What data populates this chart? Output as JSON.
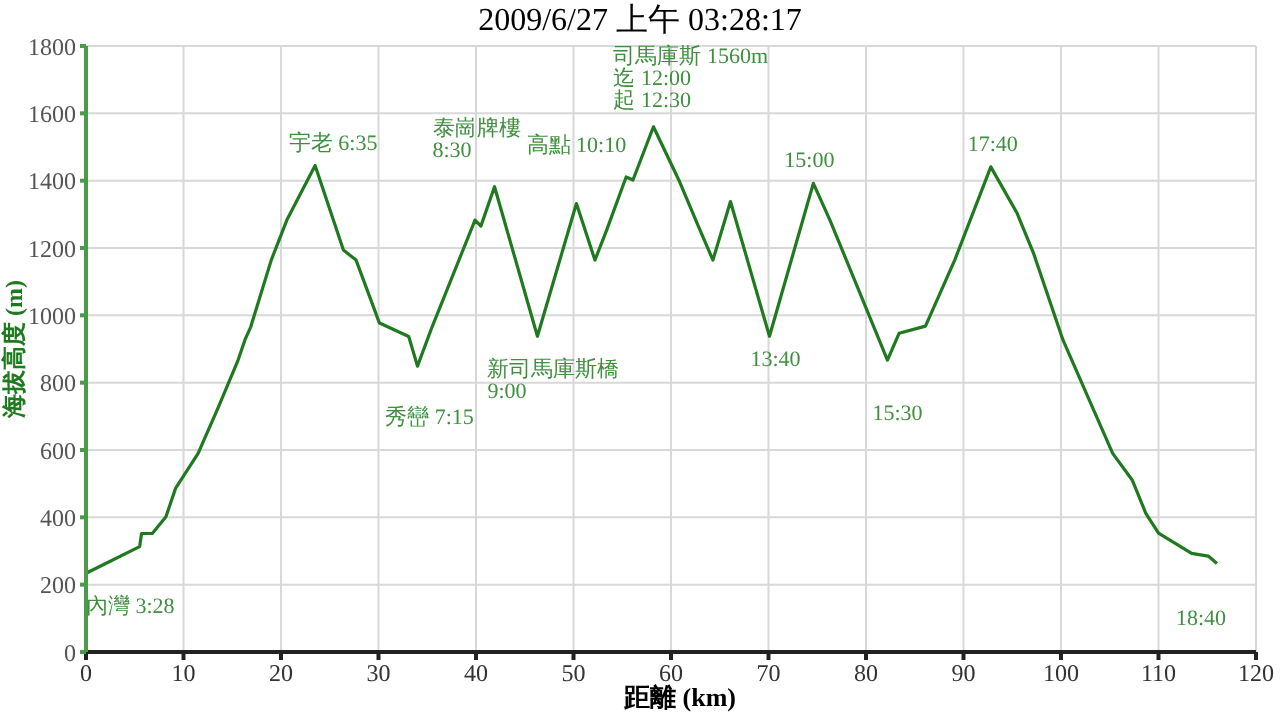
{
  "chart_data": {
    "type": "line",
    "title": "2009/6/27 上午 03:28:17",
    "xlabel": "距離 (km)",
    "ylabel": "海拔高度 (m)",
    "x": [
      0,
      1.4,
      5.5,
      5.7,
      6.8,
      8.2,
      9.2,
      11.5,
      13.6,
      15.6,
      16.3,
      16.9,
      19,
      20.6,
      23.5,
      26.4,
      27.7,
      30.1,
      33.1,
      34,
      35.5,
      39.9,
      40.5,
      41.9,
      46.3,
      50.3,
      52.2,
      53.4,
      55.4,
      56.1,
      58.2,
      60.8,
      62.8,
      64.3,
      66.1,
      70.1,
      74.6,
      76.3,
      82.2,
      83.4,
      86.1,
      89.1,
      92.8,
      95.5,
      97.2,
      100.2,
      102.6,
      105.3,
      107.3,
      108.7,
      110,
      113.4,
      115.1,
      116
    ],
    "series": [
      {
        "color": "#1f7a1f",
        "values": [
          234,
          254,
          313,
          352,
          352,
          402,
          487,
          590,
          729,
          867,
          927,
          966,
          1164,
          1283,
          1445,
          1194,
          1164,
          977,
          937,
          849,
          966,
          1283,
          1265,
          1382,
          938,
          1332,
          1164,
          1253,
          1411,
          1402,
          1560,
          1402,
          1265,
          1164,
          1338,
          938,
          1392,
          1283,
          867,
          947,
          968,
          1164,
          1441,
          1303,
          1183,
          927,
          768,
          590,
          511,
          412,
          353,
          293,
          285,
          263
        ]
      }
    ],
    "xlim": [
      0,
      120
    ],
    "xticks": [
      0,
      10,
      20,
      30,
      40,
      50,
      60,
      70,
      80,
      90,
      100,
      110,
      120
    ],
    "ylim": [
      0,
      1800
    ],
    "yticks": [
      0,
      200,
      400,
      600,
      800,
      1000,
      1200,
      1400,
      1600,
      1800
    ],
    "grid": true,
    "legend": false,
    "marker": "none",
    "line_style": "solid",
    "annotations": [
      {
        "text": "宇老 6:35",
        "x": 23.5,
        "y": 1445
      },
      {
        "text": "泰崗牌樓\n8:30",
        "x": 41.9,
        "y": 1382
      },
      {
        "text": "高點 10:10",
        "x": 50.3,
        "y": 1332
      },
      {
        "text": "司馬庫斯 1560m\n迄 12:00\n起 12:30",
        "x": 58.2,
        "y": 1560
      },
      {
        "text": "秀巒 7:15",
        "x": 34,
        "y": 849
      },
      {
        "text": "新司馬庫斯橋\n9:00",
        "x": 46.3,
        "y": 938
      },
      {
        "text": "13:40",
        "x": 70.1,
        "y": 938
      },
      {
        "text": "15:00",
        "x": 74.6,
        "y": 1392
      },
      {
        "text": "15:30",
        "x": 82.2,
        "y": 867
      },
      {
        "text": "17:40",
        "x": 92.8,
        "y": 1441
      },
      {
        "text": "內灣 3:28",
        "x": 0,
        "y": 234
      },
      {
        "text": "18:40",
        "x": 116,
        "y": 263
      }
    ]
  }
}
